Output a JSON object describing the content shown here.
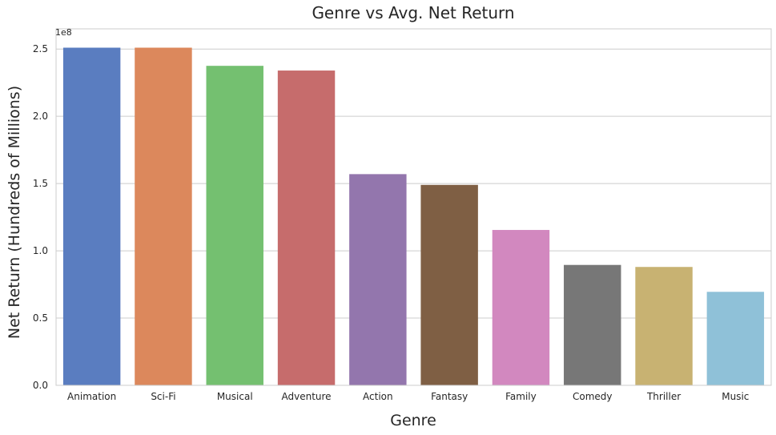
{
  "chart_data": {
    "type": "bar",
    "title": "Genre vs Avg. Net Return",
    "xlabel": "Genre",
    "ylabel": "Net Return (Hundreds of Millions)",
    "y_offset_label": "1e8",
    "categories": [
      "Animation",
      "Sci-Fi",
      "Musical",
      "Adventure",
      "Action",
      "Fantasy",
      "Family",
      "Comedy",
      "Thriller",
      "Music"
    ],
    "values": [
      251000000,
      251000000,
      237500000,
      234000000,
      157000000,
      149000000,
      115500000,
      89500000,
      88000000,
      69500000
    ],
    "colors": [
      "#5a7dc0",
      "#dc885c",
      "#74c070",
      "#c66c6c",
      "#9376ad",
      "#7f5f44",
      "#d288bf",
      "#777777",
      "#c8b272",
      "#8fc1d8"
    ],
    "ylim": [
      0,
      265000000
    ],
    "yticks": [
      0,
      50000000,
      100000000,
      150000000,
      200000000,
      250000000
    ],
    "ytick_labels": [
      "0.0",
      "0.5",
      "1.0",
      "1.5",
      "2.0",
      "2.5"
    ],
    "grid": true,
    "grid_axis": "y",
    "legend": "none"
  }
}
